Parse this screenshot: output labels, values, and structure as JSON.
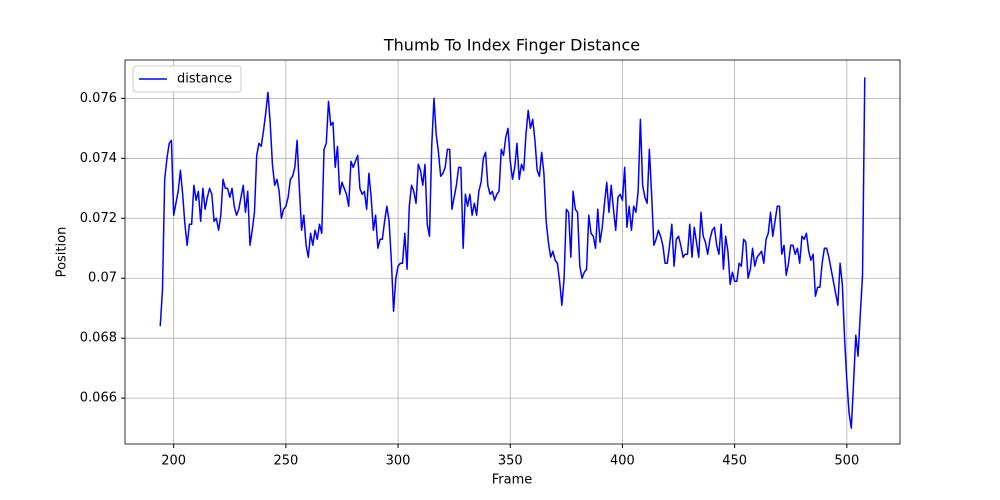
{
  "chart_data": {
    "type": "line",
    "title": "Thumb To Index Finger Distance",
    "x_label": "Frame",
    "y_label": "Position",
    "xlim": [
      178.3,
      523.7
    ],
    "ylim": [
      0.06447,
      0.07728
    ],
    "xticks": [
      200,
      250,
      300,
      350,
      400,
      450,
      500
    ],
    "yticks": [
      0.066,
      0.068,
      0.07,
      0.072,
      0.074,
      0.076
    ],
    "grid": true,
    "legend": "upper left",
    "x": [
      194,
      195,
      196,
      197,
      198,
      199,
      200,
      201,
      202,
      203,
      204,
      205,
      206,
      207,
      208,
      209,
      210,
      211,
      212,
      213,
      214,
      215,
      216,
      217,
      218,
      219,
      220,
      221,
      222,
      223,
      224,
      225,
      226,
      227,
      228,
      229,
      230,
      231,
      232,
      233,
      234,
      235,
      236,
      237,
      238,
      239,
      240,
      241,
      242,
      243,
      244,
      245,
      246,
      247,
      248,
      249,
      250,
      251,
      252,
      253,
      254,
      255,
      256,
      257,
      258,
      259,
      260,
      261,
      262,
      263,
      264,
      265,
      266,
      267,
      268,
      269,
      270,
      271,
      272,
      273,
      274,
      275,
      276,
      277,
      278,
      279,
      280,
      281,
      282,
      283,
      284,
      285,
      286,
      287,
      288,
      289,
      290,
      291,
      292,
      293,
      294,
      295,
      296,
      297,
      298,
      299,
      300,
      301,
      302,
      303,
      304,
      305,
      306,
      307,
      308,
      309,
      310,
      311,
      312,
      313,
      314,
      315,
      316,
      317,
      318,
      319,
      320,
      321,
      322,
      323,
      324,
      325,
      326,
      327,
      328,
      329,
      330,
      331,
      332,
      333,
      334,
      335,
      336,
      337,
      338,
      339,
      340,
      341,
      342,
      343,
      344,
      345,
      346,
      347,
      348,
      349,
      350,
      351,
      352,
      353,
      354,
      355,
      356,
      357,
      358,
      359,
      360,
      361,
      362,
      363,
      364,
      365,
      366,
      367,
      368,
      369,
      370,
      371,
      372,
      373,
      374,
      375,
      376,
      377,
      378,
      379,
      380,
      381,
      382,
      383,
      384,
      385,
      386,
      387,
      388,
      389,
      390,
      391,
      392,
      393,
      394,
      395,
      396,
      397,
      398,
      399,
      400,
      401,
      402,
      403,
      404,
      405,
      406,
      407,
      408,
      409,
      410,
      411,
      412,
      413,
      414,
      415,
      416,
      417,
      418,
      419,
      420,
      421,
      422,
      423,
      424,
      425,
      426,
      427,
      428,
      429,
      430,
      431,
      432,
      433,
      434,
      435,
      436,
      437,
      438,
      439,
      440,
      441,
      442,
      443,
      444,
      445,
      446,
      447,
      448,
      449,
      450,
      451,
      452,
      453,
      454,
      455,
      456,
      457,
      458,
      459,
      460,
      461,
      462,
      463,
      464,
      465,
      466,
      467,
      468,
      469,
      470,
      471,
      472,
      473,
      474,
      475,
      476,
      477,
      478,
      479,
      480,
      481,
      482,
      483,
      484,
      485,
      486,
      487,
      488,
      489,
      490,
      491,
      492,
      496,
      497,
      498,
      499,
      500,
      501,
      502,
      503,
      504,
      505,
      506,
      507,
      508
    ],
    "series": [
      {
        "name": "distance",
        "color": "#0000ff",
        "values": [
          0.0684,
          0.0696,
          0.0733,
          0.074,
          0.0745,
          0.0746,
          0.0721,
          0.0725,
          0.0729,
          0.0736,
          0.0728,
          0.0718,
          0.0711,
          0.0718,
          0.0718,
          0.0731,
          0.0726,
          0.0729,
          0.0719,
          0.073,
          0.0723,
          0.0727,
          0.073,
          0.0728,
          0.0719,
          0.072,
          0.0716,
          0.0721,
          0.0733,
          0.073,
          0.073,
          0.0727,
          0.073,
          0.0724,
          0.0721,
          0.0723,
          0.0727,
          0.0731,
          0.0722,
          0.0729,
          0.0711,
          0.0716,
          0.0722,
          0.0741,
          0.0745,
          0.0744,
          0.0749,
          0.0755,
          0.0762,
          0.0752,
          0.0738,
          0.0731,
          0.0733,
          0.0729,
          0.072,
          0.0723,
          0.0724,
          0.0727,
          0.0733,
          0.0734,
          0.0737,
          0.0746,
          0.073,
          0.0716,
          0.0721,
          0.0711,
          0.0707,
          0.0715,
          0.0711,
          0.0716,
          0.0713,
          0.0718,
          0.0715,
          0.0743,
          0.0745,
          0.0759,
          0.0751,
          0.0752,
          0.0737,
          0.0744,
          0.0728,
          0.0732,
          0.073,
          0.0728,
          0.0724,
          0.0739,
          0.0737,
          0.0739,
          0.0741,
          0.073,
          0.0728,
          0.0729,
          0.0723,
          0.0735,
          0.0727,
          0.0716,
          0.0721,
          0.071,
          0.0713,
          0.0713,
          0.0719,
          0.0724,
          0.0719,
          0.0706,
          0.0689,
          0.07,
          0.0704,
          0.0705,
          0.0705,
          0.0715,
          0.0703,
          0.0724,
          0.0731,
          0.0729,
          0.0725,
          0.0738,
          0.0736,
          0.0731,
          0.0738,
          0.0718,
          0.0714,
          0.0744,
          0.076,
          0.0748,
          0.0742,
          0.0734,
          0.0735,
          0.0737,
          0.0743,
          0.0743,
          0.0723,
          0.0727,
          0.0731,
          0.0737,
          0.0737,
          0.071,
          0.0728,
          0.0724,
          0.0728,
          0.0721,
          0.0725,
          0.0721,
          0.0729,
          0.0732,
          0.074,
          0.0742,
          0.0731,
          0.0728,
          0.0729,
          0.0726,
          0.0728,
          0.0729,
          0.0743,
          0.0741,
          0.0747,
          0.075,
          0.0739,
          0.0733,
          0.0737,
          0.0745,
          0.0733,
          0.0738,
          0.0736,
          0.0748,
          0.0756,
          0.075,
          0.0753,
          0.0746,
          0.0736,
          0.0734,
          0.0742,
          0.0735,
          0.0719,
          0.0712,
          0.0707,
          0.0709,
          0.0706,
          0.0705,
          0.0699,
          0.0691,
          0.07,
          0.0723,
          0.0722,
          0.0707,
          0.0729,
          0.0723,
          0.0722,
          0.0704,
          0.07,
          0.0702,
          0.0703,
          0.0721,
          0.0715,
          0.0714,
          0.071,
          0.0723,
          0.0712,
          0.0717,
          0.0725,
          0.0732,
          0.0722,
          0.0731,
          0.0723,
          0.0716,
          0.0727,
          0.0728,
          0.0726,
          0.0737,
          0.0717,
          0.0724,
          0.0716,
          0.0724,
          0.0722,
          0.0729,
          0.0753,
          0.0731,
          0.0727,
          0.0725,
          0.0743,
          0.0728,
          0.0711,
          0.0713,
          0.0716,
          0.0714,
          0.0711,
          0.0705,
          0.0705,
          0.0711,
          0.0718,
          0.0704,
          0.0713,
          0.0714,
          0.0711,
          0.0707,
          0.0708,
          0.0708,
          0.0718,
          0.0707,
          0.0717,
          0.0712,
          0.0707,
          0.0722,
          0.0714,
          0.0712,
          0.0708,
          0.0713,
          0.0716,
          0.0717,
          0.0711,
          0.0708,
          0.0718,
          0.0703,
          0.0714,
          0.0709,
          0.0698,
          0.0702,
          0.0699,
          0.0699,
          0.0705,
          0.0704,
          0.0713,
          0.0712,
          0.07,
          0.0703,
          0.071,
          0.0704,
          0.0707,
          0.0708,
          0.0709,
          0.0705,
          0.0713,
          0.0715,
          0.0722,
          0.0714,
          0.0719,
          0.0724,
          0.0724,
          0.0708,
          0.0711,
          0.0701,
          0.0705,
          0.0711,
          0.0711,
          0.0708,
          0.071,
          0.0705,
          0.0714,
          0.0713,
          0.0715,
          0.0709,
          0.0706,
          0.0708,
          0.0694,
          0.0697,
          0.0697,
          0.0705,
          0.071,
          0.071,
          0.0707,
          0.0691,
          0.0705,
          0.0698,
          0.068,
          0.0666,
          0.0655,
          0.065,
          0.0665,
          0.0681,
          0.0674,
          0.0688,
          0.0701,
          0.0767
        ]
      }
    ]
  }
}
